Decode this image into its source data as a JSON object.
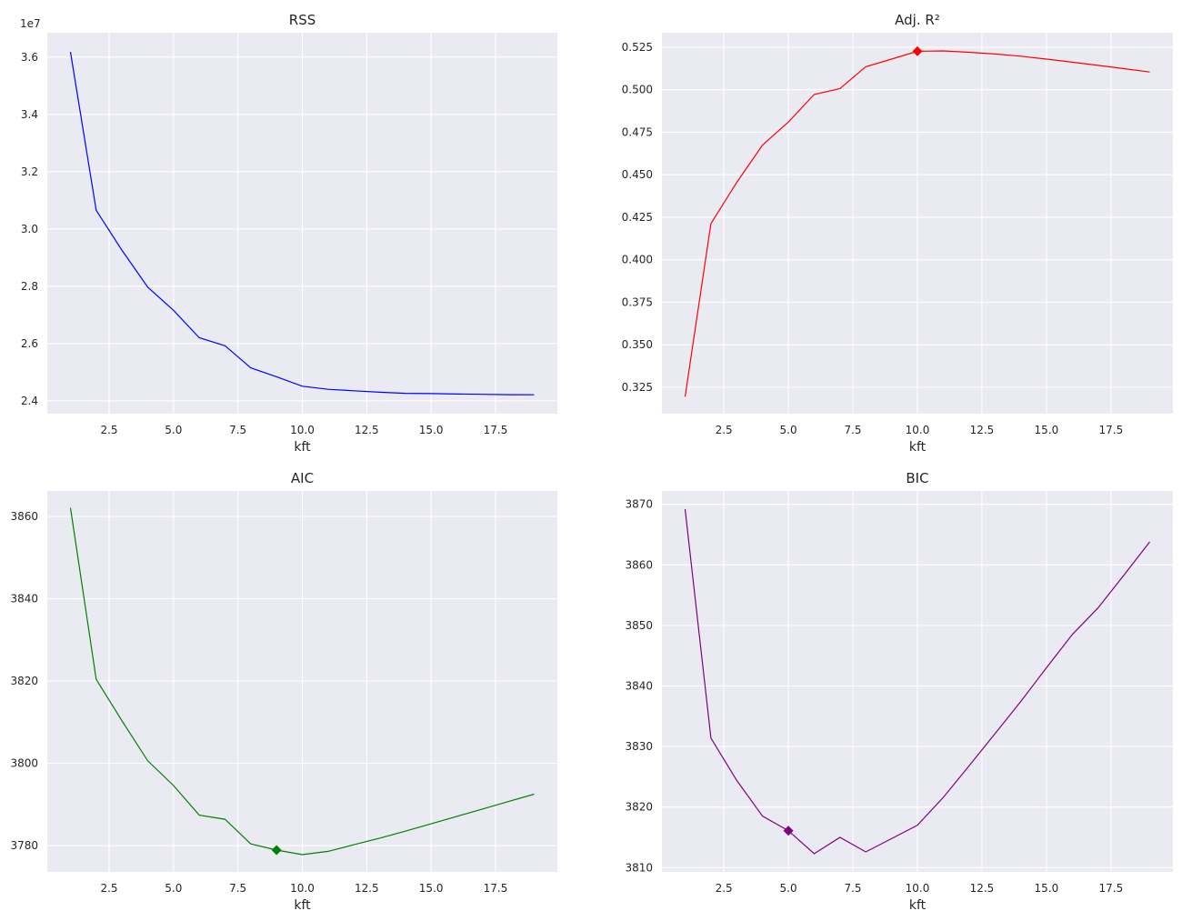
{
  "figure": {
    "background": "#ffffff",
    "axes_background": "#eaeaf2",
    "grid_color": "#ffffff"
  },
  "chart_data": [
    {
      "type": "line",
      "title": "RSS",
      "xlabel": "kft",
      "ylabel": "",
      "offset_label": "1e7",
      "xlim": [
        0.1,
        19.9
      ],
      "ylim": [
        23550000,
        36850000
      ],
      "xticks": [
        2.5,
        5.0,
        7.5,
        10.0,
        12.5,
        15.0,
        17.5
      ],
      "xtick_labels": [
        "2.5",
        "5.0",
        "7.5",
        "10.0",
        "12.5",
        "15.0",
        "17.5"
      ],
      "yticks": [
        24000000,
        26000000,
        28000000,
        30000000,
        32000000,
        34000000,
        36000000
      ],
      "ytick_labels": [
        "2.4",
        "2.6",
        "2.8",
        "3.0",
        "3.2",
        "3.4",
        "3.6"
      ],
      "color": "#0000ff",
      "grid": true,
      "x": [
        1,
        2,
        3,
        4,
        5,
        6,
        7,
        8,
        9,
        10,
        11,
        12,
        13,
        14,
        15,
        16,
        17,
        18,
        19
      ],
      "y": [
        36180000,
        30650000,
        29250000,
        27970000,
        27160000,
        26200000,
        25920000,
        25150000,
        24840000,
        24510000,
        24400000,
        24350000,
        24300000,
        24260000,
        24250000,
        24235000,
        24225000,
        24215000,
        24210000
      ],
      "marker": null
    },
    {
      "type": "line",
      "title": "Adj. R²",
      "xlabel": "kft",
      "ylabel": "",
      "offset_label": "",
      "xlim": [
        0.1,
        19.9
      ],
      "ylim": [
        0.3095,
        0.5335
      ],
      "xticks": [
        2.5,
        5.0,
        7.5,
        10.0,
        12.5,
        15.0,
        17.5
      ],
      "xtick_labels": [
        "2.5",
        "5.0",
        "7.5",
        "10.0",
        "12.5",
        "15.0",
        "17.5"
      ],
      "yticks": [
        0.325,
        0.35,
        0.375,
        0.4,
        0.425,
        0.45,
        0.475,
        0.5,
        0.525
      ],
      "ytick_labels": [
        "0.325",
        "0.350",
        "0.375",
        "0.400",
        "0.425",
        "0.450",
        "0.475",
        "0.500",
        "0.525"
      ],
      "color": "#ff0000",
      "grid": true,
      "x": [
        1,
        2,
        3,
        4,
        5,
        6,
        7,
        8,
        9,
        10,
        11,
        12,
        13,
        14,
        15,
        16,
        17,
        18,
        19
      ],
      "y": [
        0.3195,
        0.4213,
        0.4455,
        0.4675,
        0.481,
        0.4972,
        0.5007,
        0.5135,
        0.518,
        0.5226,
        0.5228,
        0.522,
        0.521,
        0.5197,
        0.518,
        0.5162,
        0.5143,
        0.5124,
        0.5104
      ],
      "marker": {
        "x": 10,
        "y": 0.5226
      }
    },
    {
      "type": "line",
      "title": "AIC",
      "xlabel": "kft",
      "ylabel": "",
      "offset_label": "",
      "xlim": [
        0.1,
        19.9
      ],
      "ylim": [
        3773.6,
        3866.2
      ],
      "xticks": [
        2.5,
        5.0,
        7.5,
        10.0,
        12.5,
        15.0,
        17.5
      ],
      "xtick_labels": [
        "2.5",
        "5.0",
        "7.5",
        "10.0",
        "12.5",
        "15.0",
        "17.5"
      ],
      "yticks": [
        3780,
        3800,
        3820,
        3840,
        3860
      ],
      "ytick_labels": [
        "3780",
        "3800",
        "3820",
        "3840",
        "3860"
      ],
      "color": "#008000",
      "grid": true,
      "x": [
        1,
        2,
        3,
        4,
        5,
        6,
        7,
        8,
        9,
        10,
        11,
        12,
        13,
        14,
        15,
        16,
        17,
        18,
        19
      ],
      "y": [
        3862.1,
        3820.4,
        3810.3,
        3800.6,
        3794.6,
        3787.4,
        3786.4,
        3780.4,
        3778.9,
        3777.8,
        3778.6,
        3780.2,
        3781.8,
        3783.5,
        3785.3,
        3787.1,
        3788.9,
        3790.7,
        3792.5
      ],
      "marker": {
        "x": 9,
        "y": 3778.9
      }
    },
    {
      "type": "line",
      "title": "BIC",
      "xlabel": "kft",
      "ylabel": "",
      "offset_label": "",
      "xlim": [
        0.1,
        19.9
      ],
      "ylim": [
        3809.3,
        3872.2
      ],
      "xticks": [
        2.5,
        5.0,
        7.5,
        10.0,
        12.5,
        15.0,
        17.5
      ],
      "xtick_labels": [
        "2.5",
        "5.0",
        "7.5",
        "10.0",
        "12.5",
        "15.0",
        "17.5"
      ],
      "yticks": [
        3810,
        3820,
        3830,
        3840,
        3850,
        3860,
        3870
      ],
      "ytick_labels": [
        "3810",
        "3820",
        "3830",
        "3840",
        "3850",
        "3860",
        "3870"
      ],
      "color": "#800080",
      "grid": true,
      "x": [
        1,
        2,
        3,
        4,
        5,
        6,
        7,
        8,
        9,
        10,
        11,
        12,
        13,
        14,
        15,
        16,
        17,
        18,
        19
      ],
      "y": [
        3869.2,
        3831.4,
        3824.4,
        3818.5,
        3816.1,
        3812.3,
        3815.0,
        3812.6,
        3814.8,
        3817.0,
        3821.6,
        3826.8,
        3832.1,
        3837.4,
        3843.0,
        3848.5,
        3852.9,
        3858.3,
        3863.8
      ],
      "marker": {
        "x": 5,
        "y": 3816.1
      }
    }
  ]
}
